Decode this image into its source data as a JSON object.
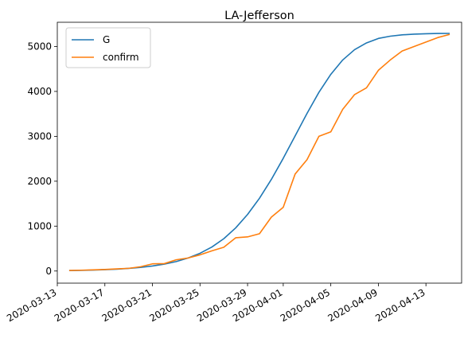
{
  "chart_data": {
    "type": "line",
    "title": "LA-Jefferson",
    "xlabel": "",
    "ylabel": "",
    "x": [
      "2020-03-14",
      "2020-03-15",
      "2020-03-16",
      "2020-03-17",
      "2020-03-18",
      "2020-03-19",
      "2020-03-20",
      "2020-03-21",
      "2020-03-22",
      "2020-03-23",
      "2020-03-24",
      "2020-03-25",
      "2020-03-26",
      "2020-03-27",
      "2020-03-28",
      "2020-03-29",
      "2020-03-30",
      "2020-03-31",
      "2020-04-01",
      "2020-04-02",
      "2020-04-03",
      "2020-04-04",
      "2020-04-05",
      "2020-04-06",
      "2020-04-07",
      "2020-04-08",
      "2020-04-09",
      "2020-04-10",
      "2020-04-11",
      "2020-04-12",
      "2020-04-13",
      "2020-04-14",
      "2020-04-15"
    ],
    "xticks": [
      "2020-03-13",
      "2020-03-17",
      "2020-03-21",
      "2020-03-25",
      "2020-03-29",
      "2020-04-01",
      "2020-04-05",
      "2020-04-09",
      "2020-04-13"
    ],
    "yticks": [
      0,
      1000,
      2000,
      3000,
      4000,
      5000
    ],
    "xlim": [
      "2020-03-13T00:00",
      "2020-04-16T00:00"
    ],
    "ylim": [
      -270,
      5540
    ],
    "legend_position": "top-left",
    "grid": false,
    "series": [
      {
        "name": "G",
        "color": "#1f77b4",
        "values": [
          10,
          15,
          21,
          30,
          42,
          58,
          80,
          112,
          154,
          211,
          290,
          395,
          535,
          720,
          960,
          1260,
          1620,
          2040,
          2510,
          3010,
          3510,
          3980,
          4380,
          4700,
          4930,
          5080,
          5180,
          5230,
          5260,
          5275,
          5285,
          5290,
          5292
        ]
      },
      {
        "name": "confirm",
        "color": "#ff7f0e",
        "values": [
          12,
          18,
          25,
          35,
          48,
          60,
          95,
          160,
          165,
          250,
          290,
          360,
          450,
          530,
          740,
          760,
          830,
          1200,
          1420,
          2160,
          2480,
          3000,
          3100,
          3600,
          3930,
          4080,
          4470,
          4700,
          4900,
          5000,
          5100,
          5200,
          5270
        ]
      }
    ]
  }
}
